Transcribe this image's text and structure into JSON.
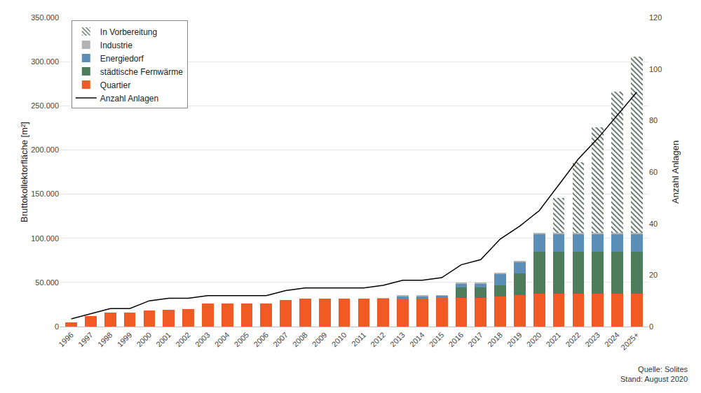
{
  "chart_data": {
    "type": "bar",
    "stacked": true,
    "grid": true,
    "legend": "top left",
    "y_label": "Bruttokollektorfläche [m²]",
    "y2_label": "Anzahl Anlagen",
    "annotations": [
      "Quelle: Solites",
      "Stand: August 2020"
    ],
    "categories": [
      "1996",
      "1997",
      "1998",
      "1999",
      "2000",
      "2001",
      "2002",
      "2003",
      "2004",
      "2005",
      "2006",
      "2007",
      "2008",
      "2009",
      "2010",
      "2011",
      "2012",
      "2013",
      "2014",
      "2015",
      "2016",
      "2017",
      "2018",
      "2019",
      "2020",
      "2021",
      "2022",
      "2023",
      "2024",
      "2025+"
    ],
    "ylim": [
      0,
      350000
    ],
    "yticks": [
      {
        "value": 0,
        "label": "0"
      },
      {
        "value": 50000,
        "label": "50.000"
      },
      {
        "value": 100000,
        "label": "100.000"
      },
      {
        "value": 150000,
        "label": "150.000"
      },
      {
        "value": 200000,
        "label": "200.000"
      },
      {
        "value": 250000,
        "label": "250.000"
      },
      {
        "value": 300000,
        "label": "300.000"
      },
      {
        "value": 350000,
        "label": "350.000"
      }
    ],
    "y2lim": [
      0,
      120
    ],
    "y2ticks": [
      0,
      20,
      40,
      60,
      80,
      100,
      120
    ],
    "series": [
      {
        "name": "Quartier",
        "type": "bar",
        "color": "#f15a24",
        "values": [
          5000,
          12000,
          15500,
          15500,
          18000,
          19000,
          19500,
          26500,
          26500,
          26500,
          26500,
          30000,
          31500,
          31500,
          31500,
          31500,
          31500,
          32000,
          32000,
          32500,
          32500,
          32500,
          34000,
          36000,
          37500,
          37500,
          37500,
          37500,
          37500,
          37500
        ]
      },
      {
        "name": "städtische Fernwärme",
        "type": "bar",
        "color": "#4e7d5b",
        "values": [
          0,
          0,
          0,
          0,
          0,
          0,
          0,
          0,
          0,
          0,
          0,
          0,
          0,
          0,
          0,
          0,
          0,
          0,
          0,
          0,
          11500,
          12000,
          13000,
          24000,
          47500,
          47500,
          47500,
          47500,
          47500,
          47500
        ]
      },
      {
        "name": "Energiedorf",
        "type": "bar",
        "color": "#5b8fb8",
        "values": [
          0,
          0,
          0,
          0,
          0,
          0,
          0,
          0,
          0,
          0,
          0,
          0,
          0,
          0,
          0,
          0,
          0,
          2000,
          2000,
          2000,
          4500,
          4000,
          12500,
          13000,
          19500,
          19500,
          19500,
          19500,
          19500,
          19500
        ]
      },
      {
        "name": "Industrie",
        "type": "bar",
        "color": "#b4b4b4",
        "values": [
          0,
          0,
          0,
          0,
          0,
          0,
          0,
          0,
          0,
          0,
          0,
          0,
          0,
          0,
          0,
          0,
          1000,
          1500,
          1500,
          1500,
          1500,
          1500,
          1500,
          1500,
          1500,
          1500,
          1500,
          1500,
          1500,
          1500
        ]
      },
      {
        "name": "In Vorbereitung",
        "type": "bar",
        "color": "#5a6e63",
        "marker": "hatched",
        "values": [
          0,
          0,
          0,
          0,
          0,
          0,
          0,
          0,
          0,
          0,
          0,
          0,
          0,
          0,
          0,
          0,
          0,
          0,
          0,
          0,
          0,
          0,
          0,
          0,
          0,
          40000,
          80000,
          120000,
          160000,
          200000
        ]
      },
      {
        "name": "Anzahl Anlagen",
        "type": "line",
        "axis": "y2",
        "color": "#000000",
        "values": [
          3,
          5,
          7,
          7,
          10,
          11,
          11,
          12,
          12,
          12,
          12,
          14,
          15,
          15,
          15,
          15,
          16,
          18,
          18,
          19,
          24,
          26,
          34,
          39,
          45,
          55,
          65,
          73,
          82,
          91
        ]
      }
    ]
  }
}
